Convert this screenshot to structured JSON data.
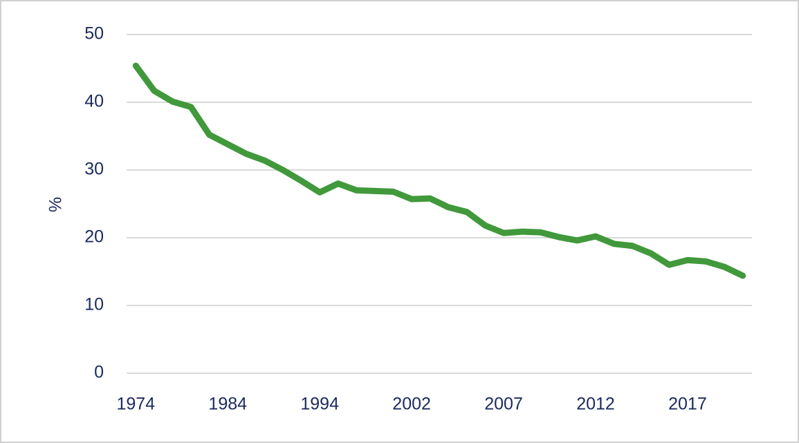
{
  "chart_data": {
    "type": "line",
    "y_label": "%",
    "categories": [
      "1974",
      null,
      null,
      null,
      null,
      "1984",
      null,
      null,
      null,
      null,
      "1994",
      null,
      null,
      null,
      null,
      "2002",
      null,
      null,
      null,
      null,
      "2007",
      null,
      null,
      null,
      null,
      "2012",
      null,
      null,
      null,
      null,
      "2017",
      null,
      null,
      null
    ],
    "series": [
      {
        "name": null,
        "color": "#41993c",
        "values": [
          45.4,
          41.7,
          40.1,
          39.3,
          35.2,
          33.8,
          32.4,
          31.4,
          30.0,
          28.4,
          26.7,
          28.0,
          27.0,
          26.9,
          26.8,
          25.7,
          25.8,
          24.5,
          23.8,
          21.8,
          20.7,
          20.9,
          20.8,
          20.1,
          19.6,
          20.2,
          19.1,
          18.8,
          17.7,
          16.0,
          16.7,
          16.5,
          15.7,
          14.4
        ]
      }
    ],
    "ylim": [
      0,
      50
    ],
    "yticks": [
      0,
      10,
      20,
      30,
      40,
      50
    ],
    "grid": true
  }
}
